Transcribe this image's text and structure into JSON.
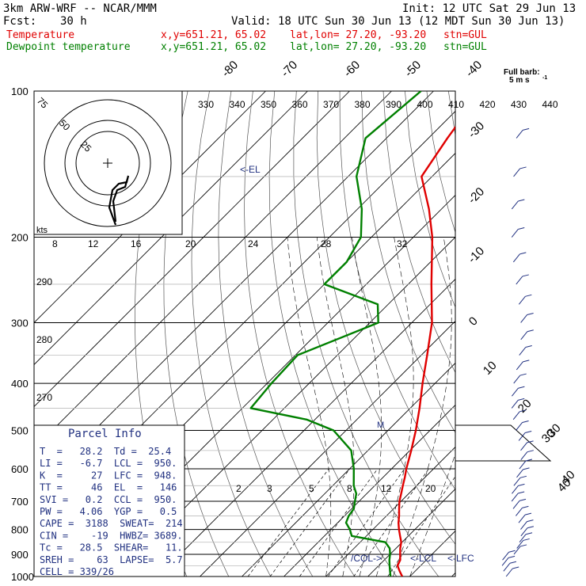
{
  "header": {
    "model": "3km ARW-WRF -- NCAR/MMM",
    "init": "Init: 12 UTC Sat 29 Jun 13",
    "fcst_label": "Fcst:",
    "fcst_value": "30 h",
    "valid": "Valid: 18 UTC Sun 30 Jun 13 (12 MDT Sun 30 Jun 13)",
    "temp_label": "Temperature",
    "temp_xy": "x,y=651.21, 65.02",
    "temp_latlon": "lat,lon= 27.20, -93.20",
    "temp_stn": "stn=GUL",
    "dew_label": "Dewpoint temperature",
    "dew_xy": "x,y=651.21, 65.02",
    "dew_latlon": "lat,lon= 27.20, -93.20",
    "dew_stn": "stn=GUL"
  },
  "barb_legend": {
    "line1": "Full barb:",
    "line2": "5 m s",
    "sup": "-1"
  },
  "parcel_info": {
    "title": "Parcel Info",
    "rows": [
      "T  =   28.2  Td =  25.4",
      "LI =   -6.7  LCL =  950.",
      "K  =     27  LFC =  948.",
      "TT =     46  EL  =   146",
      "SVI =   0.2  CCL =  950.",
      "PW =   4.06  YGP =   0.5",
      "CAPE =  3188  SWEAT=  214",
      "CIN =    -19  HWBZ= 3689.",
      "Tc =   28.5  SHEAR=   11.",
      "SREH =    63  LAPSE=  5.7",
      "CELL = 339/26"
    ]
  },
  "chart_data": {
    "type": "line",
    "title": "",
    "ylabel": "",
    "xlabel": "",
    "y_scale": "log-pressure (hPa)",
    "ylim": [
      1000,
      100
    ],
    "pressure_ticks": [
      100,
      200,
      300,
      400,
      500,
      600,
      700,
      800,
      900,
      1000
    ],
    "isotherm_labels": [
      "-80",
      "-70",
      "-60",
      "-50",
      "-40",
      "-30",
      "-20",
      "-10",
      "0",
      "10",
      "20",
      "30",
      "40"
    ],
    "theta_labels": [
      "330",
      "340",
      "350",
      "360",
      "370",
      "380",
      "390",
      "400",
      "410",
      "420",
      "430",
      "440"
    ],
    "theta_right_labels": [
      "290",
      "280",
      "270"
    ],
    "mixing_ratio_labels": [
      "2",
      "3",
      "5",
      "8",
      "12",
      "20"
    ],
    "level_markers": {
      "el": "<-EL",
      "col": "/COL->",
      "lcl": "<-LCL",
      "lfc": "<-LFC"
    },
    "series": [
      {
        "name": "Temperature",
        "color": "#e00000",
        "points": [
          [
            1000,
            28.2
          ],
          [
            975,
            26.3
          ],
          [
            950,
            24.5
          ],
          [
            925,
            23.8
          ],
          [
            900,
            22.4
          ],
          [
            875,
            21.0
          ],
          [
            850,
            19.8
          ],
          [
            825,
            18.0
          ],
          [
            800,
            16.2
          ],
          [
            775,
            14.5
          ],
          [
            750,
            13.0
          ],
          [
            725,
            11.3
          ],
          [
            700,
            9.6
          ],
          [
            675,
            8.2
          ],
          [
            650,
            6.7
          ],
          [
            625,
            5.2
          ],
          [
            600,
            3.5
          ],
          [
            550,
            0.3
          ],
          [
            500,
            -3.4
          ],
          [
            450,
            -7.8
          ],
          [
            400,
            -13.0
          ],
          [
            350,
            -18.6
          ],
          [
            300,
            -25.2
          ],
          [
            250,
            -34.5
          ],
          [
            200,
            -45.5
          ],
          [
            175,
            -53.0
          ],
          [
            150,
            -62.5
          ],
          [
            125,
            -65.5
          ],
          [
            100,
            -68.5
          ]
        ]
      },
      {
        "name": "Dewpoint temperature",
        "color": "#008000",
        "points": [
          [
            1000,
            25.4
          ],
          [
            975,
            24.0
          ],
          [
            950,
            22.6
          ],
          [
            925,
            21.2
          ],
          [
            900,
            20.0
          ],
          [
            875,
            18.5
          ],
          [
            850,
            16.0
          ],
          [
            825,
            6.5
          ],
          [
            800,
            4.5
          ],
          [
            775,
            2.0
          ],
          [
            750,
            1.0
          ],
          [
            725,
            0.5
          ],
          [
            700,
            -1.0
          ],
          [
            675,
            -2.5
          ],
          [
            650,
            -5.0
          ],
          [
            600,
            -9.0
          ],
          [
            550,
            -14.0
          ],
          [
            500,
            -23.0
          ],
          [
            475,
            -32.0
          ],
          [
            450,
            -48.0
          ],
          [
            400,
            -49.0
          ],
          [
            350,
            -49.5
          ],
          [
            300,
            -38.0
          ],
          [
            275,
            -42.5
          ],
          [
            250,
            -60.0
          ],
          [
            225,
            -60.0
          ],
          [
            200,
            -62.5
          ],
          [
            175,
            -69.0
          ],
          [
            150,
            -78.0
          ],
          [
            125,
            -85.0
          ],
          [
            100,
            -83.0
          ]
        ]
      }
    ]
  },
  "hodograph": {
    "speed_labels": [
      "75",
      "50",
      "25"
    ],
    "x_ticks": [
      "8",
      "12",
      "16",
      "20",
      "24",
      "28",
      "32"
    ],
    "unit_label": "kts"
  },
  "wind_axis_labels": [
    "30",
    "40"
  ]
}
